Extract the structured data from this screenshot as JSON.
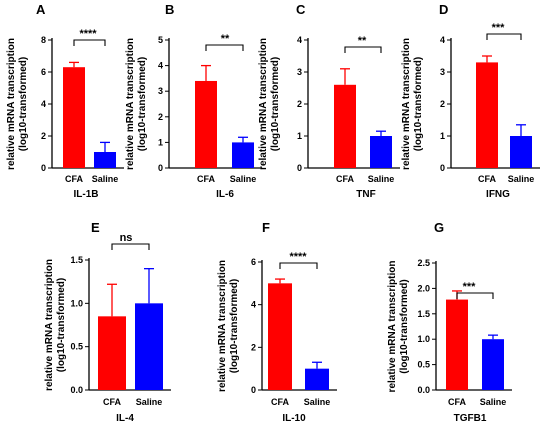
{
  "figure": {
    "y_axis_label_line1": "relative mRNA transcription",
    "y_axis_label_line2": "(log10-transformed)"
  },
  "chart_data": [
    {
      "type": "bar",
      "panel": "A",
      "xlabel": "IL-1B",
      "categories": [
        "CFA",
        "Saline"
      ],
      "values": [
        6.3,
        1.0
      ],
      "error": [
        0.3,
        0.6
      ],
      "colors": [
        "#ff0000",
        "#0000ff"
      ],
      "ylim": [
        0,
        8
      ],
      "yticks": [
        0,
        2,
        4,
        6,
        8
      ],
      "ytick_labels": [
        "0",
        "2",
        "4",
        "6",
        "8"
      ],
      "significance": "****"
    },
    {
      "type": "bar",
      "panel": "B",
      "xlabel": "IL-6",
      "categories": [
        "CFA",
        "Saline"
      ],
      "values": [
        3.4,
        1.0
      ],
      "error": [
        0.6,
        0.2
      ],
      "colors": [
        "#ff0000",
        "#0000ff"
      ],
      "ylim": [
        0,
        5
      ],
      "yticks": [
        0,
        1,
        2,
        3,
        4,
        5
      ],
      "ytick_labels": [
        "0",
        "1",
        "2",
        "3",
        "4",
        "5"
      ],
      "significance": "**"
    },
    {
      "type": "bar",
      "panel": "C",
      "xlabel": "TNF",
      "categories": [
        "CFA",
        "Saline"
      ],
      "values": [
        2.6,
        1.0
      ],
      "error": [
        0.5,
        0.15
      ],
      "colors": [
        "#ff0000",
        "#0000ff"
      ],
      "ylim": [
        0,
        4
      ],
      "yticks": [
        0,
        1,
        2,
        3,
        4
      ],
      "ytick_labels": [
        "0",
        "1",
        "2",
        "3",
        "4"
      ],
      "significance": "**"
    },
    {
      "type": "bar",
      "panel": "D",
      "xlabel": "IFNG",
      "categories": [
        "CFA",
        "Saline"
      ],
      "values": [
        3.3,
        1.0
      ],
      "error": [
        0.2,
        0.35
      ],
      "colors": [
        "#ff0000",
        "#0000ff"
      ],
      "ylim": [
        0,
        4
      ],
      "yticks": [
        0,
        1,
        2,
        3,
        4
      ],
      "ytick_labels": [
        "0",
        "1",
        "2",
        "3",
        "4"
      ],
      "significance": "***"
    },
    {
      "type": "bar",
      "panel": "E",
      "xlabel": "IL-4",
      "categories": [
        "CFA",
        "Saline"
      ],
      "values": [
        0.85,
        1.0
      ],
      "error": [
        0.37,
        0.4
      ],
      "colors": [
        "#ff0000",
        "#0000ff"
      ],
      "ylim": [
        0,
        1.5
      ],
      "yticks": [
        0,
        0.5,
        1.0,
        1.5
      ],
      "ytick_labels": [
        "0.0",
        "0.5",
        "1.0",
        "1.5"
      ],
      "significance": "ns"
    },
    {
      "type": "bar",
      "panel": "F",
      "xlabel": "IL-10",
      "categories": [
        "CFA",
        "Saline"
      ],
      "values": [
        5.0,
        1.0
      ],
      "error": [
        0.2,
        0.3
      ],
      "colors": [
        "#ff0000",
        "#0000ff"
      ],
      "ylim": [
        0,
        6
      ],
      "yticks": [
        0,
        2,
        4,
        6
      ],
      "ytick_labels": [
        "0",
        "2",
        "4",
        "6"
      ],
      "significance": "****"
    },
    {
      "type": "bar",
      "panel": "G",
      "xlabel": "TGFB1",
      "categories": [
        "CFA",
        "Saline"
      ],
      "values": [
        1.78,
        1.0
      ],
      "error": [
        0.17,
        0.08
      ],
      "colors": [
        "#ff0000",
        "#0000ff"
      ],
      "ylim": [
        0,
        2.5
      ],
      "yticks": [
        0,
        0.5,
        1.0,
        1.5,
        2.0,
        2.5
      ],
      "ytick_labels": [
        "0.0",
        "0.5",
        "1.0",
        "1.5",
        "2.0",
        "2.5"
      ],
      "significance": "***"
    }
  ]
}
